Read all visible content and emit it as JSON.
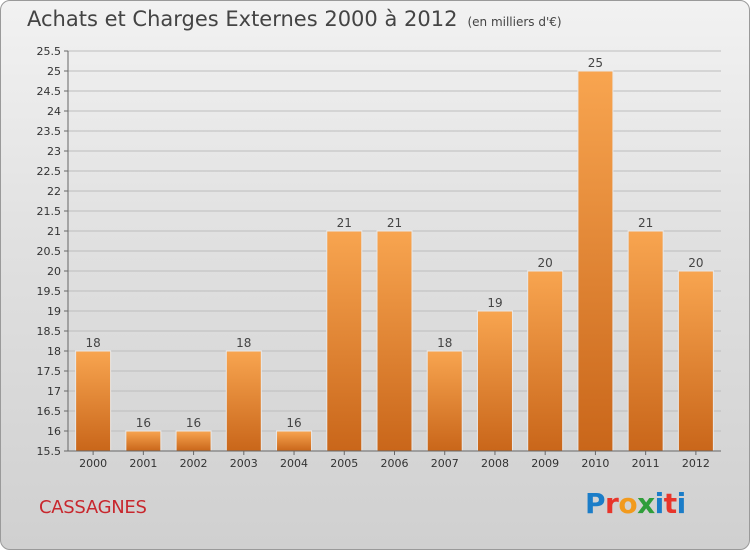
{
  "header": {
    "title": "Achats et Charges Externes 2000 à 2012",
    "unit": "(en milliers d'€)"
  },
  "commune": "CASSAGNES",
  "logo": {
    "letters": [
      "P",
      "r",
      "o",
      "x",
      "i",
      "t",
      "i"
    ]
  },
  "colors": {
    "bar": "#f0923a",
    "bar_dark": "#c8661a",
    "commune": "#c8272d"
  },
  "chart_data": {
    "type": "bar",
    "title": "Achats et Charges Externes 2000 à 2012",
    "categories": [
      "2000",
      "2001",
      "2002",
      "2003",
      "2004",
      "2005",
      "2006",
      "2007",
      "2008",
      "2009",
      "2010",
      "2011",
      "2012"
    ],
    "values": [
      18,
      16,
      16,
      18,
      16,
      21,
      21,
      18,
      19,
      20,
      25,
      21,
      20
    ],
    "ylim": [
      15.5,
      25.5
    ],
    "yticks": [
      "15.5",
      "16",
      "16.5",
      "17",
      "17.5",
      "18",
      "18.5",
      "19",
      "19.5",
      "20",
      "20.5",
      "21",
      "21.5",
      "22",
      "22.5",
      "23",
      "23.5",
      "24",
      "24.5",
      "25",
      "25.5"
    ],
    "grid": true,
    "xlabel": "",
    "ylabel": ""
  }
}
